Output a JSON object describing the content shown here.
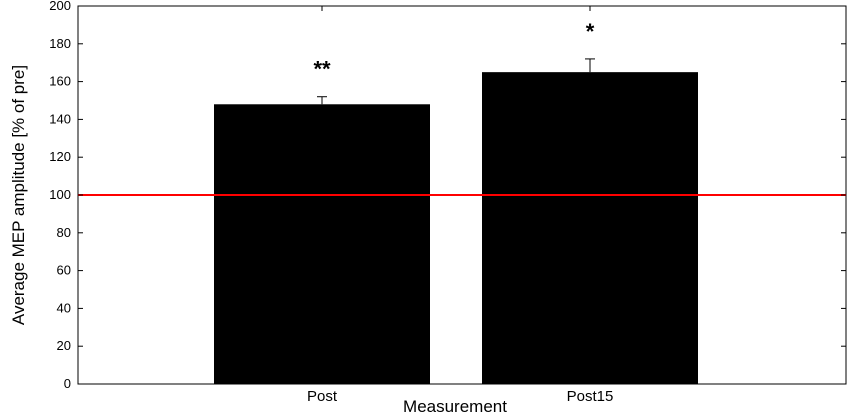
{
  "chart_data": {
    "type": "bar",
    "categories": [
      "Post",
      "Post15"
    ],
    "values": [
      148,
      165
    ],
    "error": [
      4,
      7
    ],
    "significance": [
      "**",
      "*"
    ],
    "xlabel": "Measurement",
    "ylabel": "Average MEP amplitude [% of pre]",
    "ylim": [
      0,
      200
    ],
    "yticks": [
      0,
      20,
      40,
      60,
      80,
      100,
      120,
      140,
      160,
      180,
      200
    ],
    "reference_line": {
      "value": 100,
      "color": "#ff0000"
    },
    "bar_color": "#000000",
    "grid": false
  }
}
